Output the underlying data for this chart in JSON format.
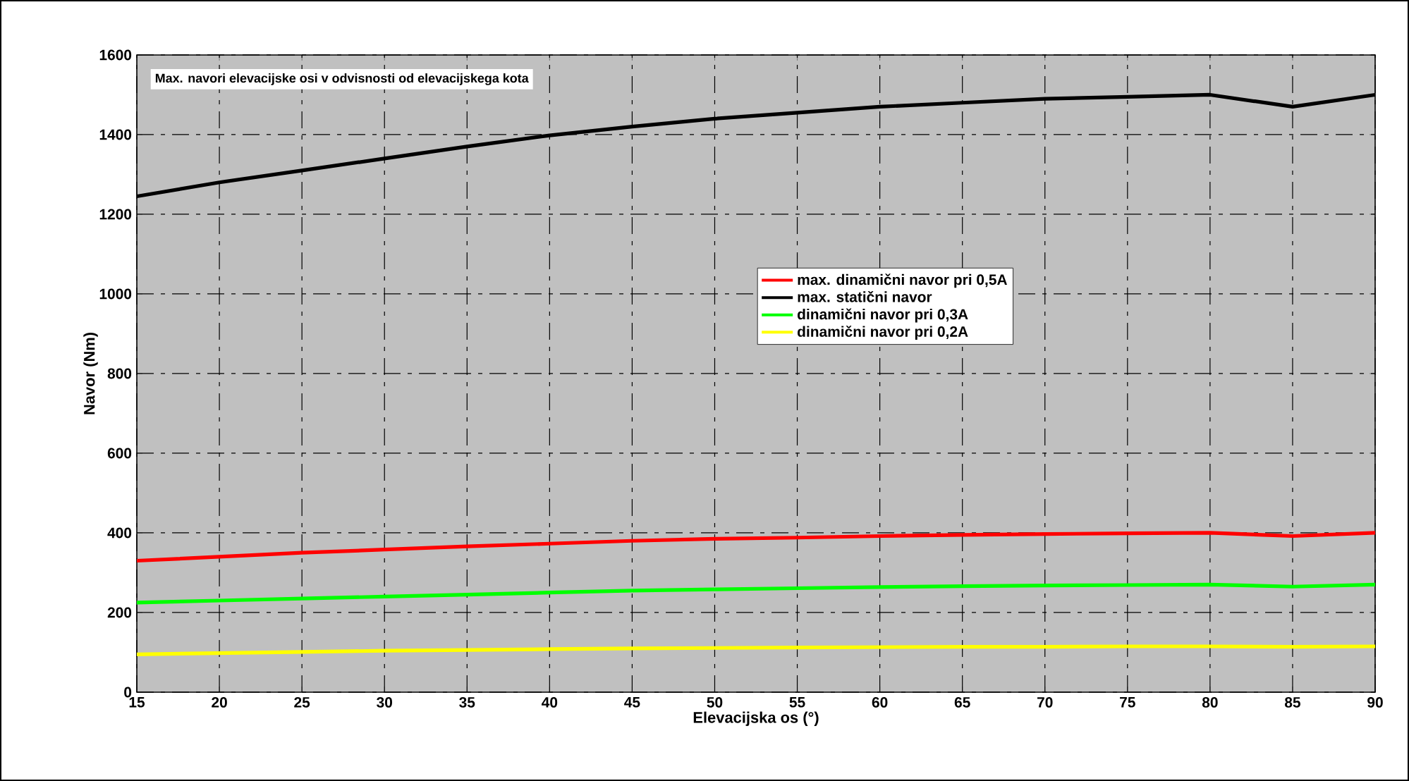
{
  "chart_data": {
    "type": "line",
    "title": "Max. navori elevacijske osi v odvisnosti od elevacijskega kota",
    "xlabel": "Elevacijska os (°)",
    "ylabel": "Navor (Nm)",
    "x": [
      15,
      20,
      25,
      30,
      35,
      40,
      45,
      50,
      55,
      60,
      65,
      70,
      75,
      80,
      85,
      90
    ],
    "xlim": [
      15,
      90
    ],
    "xticks": [
      15,
      20,
      25,
      30,
      35,
      40,
      45,
      50,
      55,
      60,
      65,
      70,
      75,
      80,
      85,
      90
    ],
    "ylim": [
      0,
      1600
    ],
    "yticks": [
      0,
      200,
      400,
      600,
      800,
      1000,
      1200,
      1400,
      1600
    ],
    "grid": true,
    "legend": "right",
    "line_style": "solid",
    "marker": "none",
    "series": [
      {
        "name": "max. dinamični navor pri 0,5A",
        "color": "#ff0000",
        "values": [
          330,
          340,
          350,
          358,
          366,
          373,
          380,
          385,
          388,
          392,
          395,
          397,
          399,
          400,
          392,
          400
        ]
      },
      {
        "name": "max. statični navor",
        "color": "#000000",
        "values": [
          1245,
          1280,
          1310,
          1340,
          1370,
          1398,
          1420,
          1440,
          1455,
          1470,
          1480,
          1490,
          1495,
          1500,
          1470,
          1500
        ]
      },
      {
        "name": "dinamični navor pri 0,3A",
        "color": "#00ff00",
        "values": [
          225,
          230,
          235,
          240,
          245,
          250,
          255,
          258,
          261,
          264,
          266,
          268,
          269,
          270,
          265,
          270
        ]
      },
      {
        "name": "dinamični navor pri 0,2A",
        "color": "#ffff00",
        "values": [
          95,
          98,
          101,
          104,
          106,
          108,
          110,
          111,
          112,
          113,
          114,
          114,
          115,
          115,
          114,
          115
        ]
      }
    ]
  }
}
